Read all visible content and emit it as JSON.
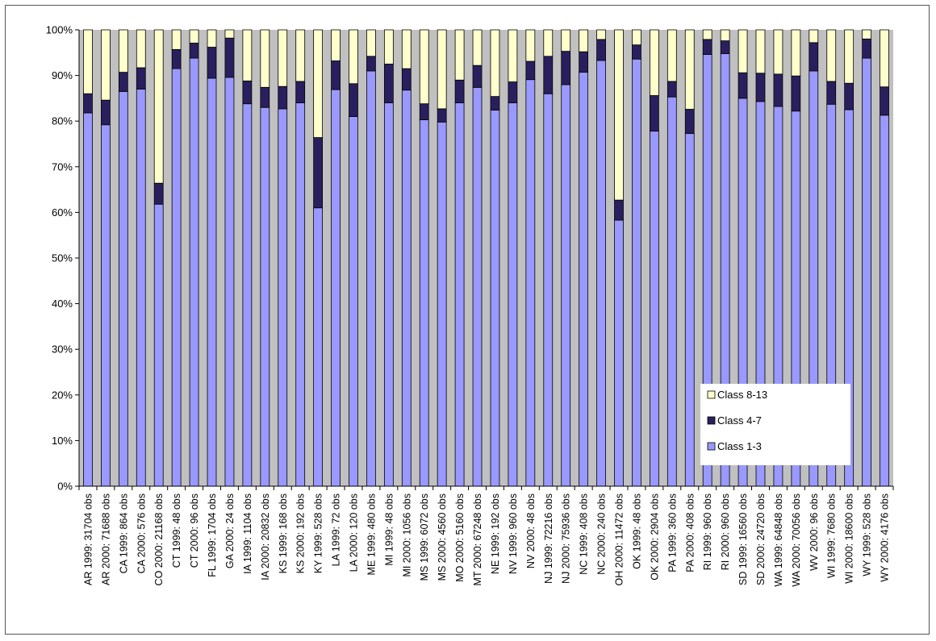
{
  "chart_data": {
    "type": "bar",
    "stacked": true,
    "percent": true,
    "ylim": [
      0,
      100
    ],
    "yticks": [
      "0%",
      "10%",
      "20%",
      "30%",
      "40%",
      "50%",
      "60%",
      "70%",
      "80%",
      "90%",
      "100%"
    ],
    "grid": false,
    "legend_position": "bottom-right",
    "categories": [
      "AR 1999: 31704 obs",
      "AR 2000: 71688 obs",
      "CA 1999: 864 obs",
      "CA 2000: 576 obs",
      "CO 2000: 21168 obs",
      "CT 1999: 48 obs",
      "CT 2000: 96 obs",
      "FL 1999: 1704 obs",
      "GA 2000: 24 obs",
      "IA 1999: 1104 obs",
      "IA 2000: 20832 obs",
      "KS 1999: 168 obs",
      "KS 2000: 192 obs",
      "KY 1999: 528 obs",
      "LA 1999: 72 obs",
      "LA 2000: 120 obs",
      "ME 1999: 480 obs",
      "MI 1999: 48 obs",
      "MI 2000: 1056 obs",
      "MS 1999: 6072 obs",
      "MS 2000: 4560 obs",
      "MO 2000: 5160 obs",
      "MT 2000: 67248 obs",
      "NE 1999: 192 obs",
      "NV 1999: 960 obs",
      "NV 2000: 48 obs",
      "NJ 1999: 72216 obs",
      "NJ 2000: 75936 obs",
      "NC 1999: 408 obs",
      "NC 2000: 240 obs",
      "OH 2000: 11472 obs",
      "OK 1999: 48 obs",
      "OK 2000: 2904 obs",
      "PA 1999: 360 obs",
      "PA 2000: 408 obs",
      "RI 1999: 960 obs",
      "RI 2000: 960 obs",
      "SD 1999: 16560 obs",
      "SD 2000: 24720 obs",
      "WA 1999: 64848 obs",
      "WA 2000: 70056 obs",
      "WV 2000: 96 obs",
      "WI 1999: 7680 obs",
      "WI 2000: 18600 obs",
      "WY 1999: 528 obs",
      "WY 2000: 4176 obs"
    ],
    "series": [
      {
        "name": "Class 1-3",
        "color": "#9999ff",
        "values": [
          81.8,
          79.2,
          86.5,
          87.0,
          61.8,
          91.5,
          93.8,
          89.4,
          89.6,
          83.8,
          83.0,
          82.7,
          84.0,
          61.0,
          86.9,
          81.0,
          91.0,
          84.0,
          86.8,
          80.3,
          79.8,
          84.0,
          87.4,
          82.4,
          84.0,
          89.1,
          86.0,
          88.0,
          90.7,
          93.3,
          58.3,
          93.6,
          77.8,
          85.3,
          77.3,
          94.6,
          94.8,
          85.0,
          84.3,
          83.2,
          82.2,
          91.0,
          83.7,
          82.5,
          93.8,
          81.3
        ]
      },
      {
        "name": "Class 4-7",
        "color": "#2a1f5e",
        "values": [
          4.2,
          5.4,
          4.2,
          4.7,
          4.6,
          4.2,
          3.3,
          6.8,
          8.6,
          5.0,
          4.4,
          4.9,
          4.7,
          15.4,
          6.3,
          7.2,
          3.2,
          8.5,
          4.7,
          3.5,
          2.9,
          5.0,
          4.8,
          3.0,
          4.6,
          4.0,
          8.2,
          7.3,
          4.5,
          4.6,
          4.4,
          3.1,
          7.8,
          3.4,
          5.3,
          3.3,
          2.8,
          5.6,
          6.2,
          7.1,
          7.7,
          6.2,
          5.0,
          5.8,
          4.2,
          6.2
        ]
      },
      {
        "name": "Class 8-13",
        "color": "#ffffcc",
        "values": [
          14.0,
          15.4,
          9.3,
          8.3,
          33.6,
          4.3,
          2.9,
          3.8,
          1.8,
          11.2,
          12.6,
          12.4,
          11.3,
          23.6,
          6.8,
          11.8,
          5.8,
          7.5,
          8.5,
          16.2,
          17.3,
          11.0,
          7.8,
          14.6,
          11.4,
          6.9,
          5.8,
          4.7,
          4.8,
          2.1,
          37.3,
          3.3,
          14.4,
          11.3,
          17.4,
          2.1,
          2.4,
          9.4,
          9.5,
          9.7,
          10.1,
          2.8,
          11.3,
          11.7,
          2.0,
          12.5
        ]
      }
    ],
    "legend": [
      {
        "name": "Class 8-13",
        "color": "#ffffcc"
      },
      {
        "name": "Class 4-7",
        "color": "#2a1f5e"
      },
      {
        "name": "Class 1-3",
        "color": "#9999ff"
      }
    ],
    "plot_background": "#c0c0c0"
  }
}
